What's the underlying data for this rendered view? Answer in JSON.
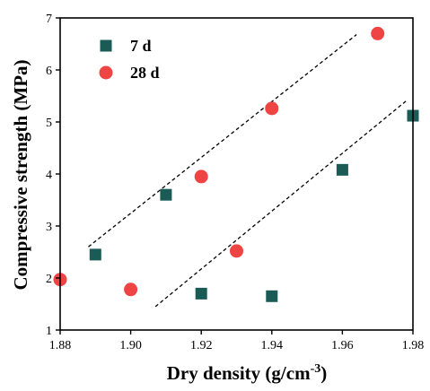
{
  "chart_data": {
    "type": "scatter",
    "xlabel_main": "Dry density (g/cm",
    "xlabel_sup": "-3",
    "xlabel_end": ")",
    "ylabel": "Compressive strength (MPa)",
    "xlim": [
      1.88,
      1.98
    ],
    "ylim": [
      1,
      7
    ],
    "xticks": [
      "1.88",
      "1.90",
      "1.92",
      "1.94",
      "1.96",
      "1.98"
    ],
    "yticks": [
      "1",
      "2",
      "3",
      "4",
      "5",
      "6",
      "7"
    ],
    "legend_position": "top-left",
    "series": [
      {
        "name": "7 d",
        "marker": "square",
        "color": "#1a5b56",
        "x": [
          1.89,
          1.91,
          1.92,
          1.94,
          1.96,
          1.98
        ],
        "y": [
          2.45,
          3.6,
          1.7,
          1.65,
          4.08,
          5.12
        ]
      },
      {
        "name": "28 d",
        "marker": "circle",
        "color": "#ee4444",
        "x": [
          1.88,
          1.9,
          1.92,
          1.93,
          1.94,
          1.97
        ],
        "y": [
          1.97,
          1.78,
          3.95,
          2.52,
          5.26,
          6.7
        ]
      }
    ],
    "trend_lines": [
      {
        "x": [
          1.888,
          1.964
        ],
        "y": [
          2.6,
          6.68
        ]
      },
      {
        "x": [
          1.907,
          1.978
        ],
        "y": [
          1.45,
          5.4
        ]
      }
    ]
  }
}
